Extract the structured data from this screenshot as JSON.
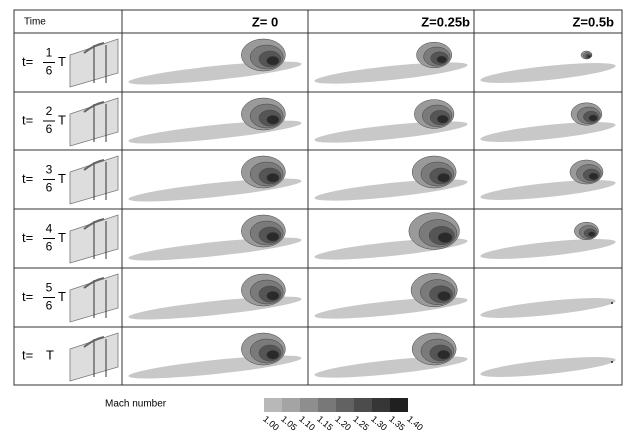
{
  "header": {
    "time": "Time",
    "columns": [
      "Z= 0",
      "Z=0.25b",
      "Z=0.5b"
    ]
  },
  "rows": [
    {
      "prefix": "t=",
      "numerator": "1",
      "denominator": "6",
      "unit": "T"
    },
    {
      "prefix": "t=",
      "numerator": "2",
      "denominator": "6",
      "unit": "T"
    },
    {
      "prefix": "t=",
      "numerator": "3",
      "denominator": "6",
      "unit": "T"
    },
    {
      "prefix": "t=",
      "numerator": "4",
      "denominator": "6",
      "unit": "T"
    },
    {
      "prefix": "t=",
      "numerator": "5",
      "denominator": "6",
      "unit": "T"
    },
    {
      "prefix": "t=",
      "unit": "T"
    }
  ],
  "legend": {
    "title": "Mach number",
    "labels": [
      "1.00",
      "1.05",
      "1.10",
      "1.15",
      "1.20",
      "1.25",
      "1.30",
      "1.35",
      "1.40"
    ]
  }
}
